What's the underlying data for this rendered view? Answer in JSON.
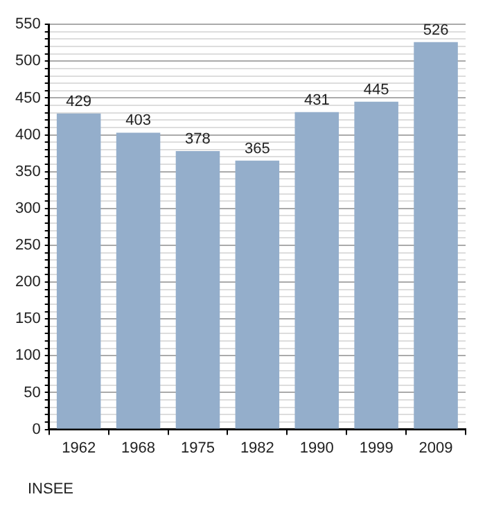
{
  "chart_data": {
    "type": "bar",
    "categories": [
      "1962",
      "1968",
      "1975",
      "1982",
      "1990",
      "1999",
      "2009"
    ],
    "values": [
      429,
      403,
      378,
      365,
      431,
      445,
      526
    ],
    "color": "#94aecb",
    "ylim": [
      0,
      550
    ],
    "yticks": [
      0,
      {
        "value": 10,
        "label": null
      },
      {
        "value": 20,
        "label": null
      },
      {
        "value": 30,
        "label": null
      },
      {
        "value": 40,
        "label": null
      },
      50,
      {
        "value": 60,
        "label": null
      },
      {
        "value": 70,
        "label": null
      },
      {
        "value": 80,
        "label": null
      },
      {
        "value": 90,
        "label": null
      },
      100,
      {
        "value": 110,
        "label": null
      },
      {
        "value": 120,
        "label": null
      },
      {
        "value": 130,
        "label": null
      },
      {
        "value": 140,
        "label": null
      },
      150,
      {
        "value": 160,
        "label": null
      },
      {
        "value": 170,
        "label": null
      },
      {
        "value": 180,
        "label": null
      },
      {
        "value": 190,
        "label": null
      },
      200,
      {
        "value": 210,
        "label": null
      },
      {
        "value": 220,
        "label": null
      },
      {
        "value": 230,
        "label": null
      },
      {
        "value": 240,
        "label": null
      },
      250,
      {
        "value": 260,
        "label": null
      },
      {
        "value": 270,
        "label": null
      },
      {
        "value": 280,
        "label": null
      },
      {
        "value": 290,
        "label": null
      },
      300,
      {
        "value": 310,
        "label": null
      },
      {
        "value": 320,
        "label": null
      },
      {
        "value": 330,
        "label": null
      },
      {
        "value": 340,
        "label": null
      },
      350,
      {
        "value": 360,
        "label": null
      },
      {
        "value": 370,
        "label": null
      },
      {
        "value": 380,
        "label": null
      },
      {
        "value": 390,
        "label": null
      },
      400,
      {
        "value": 410,
        "label": null
      },
      {
        "value": 420,
        "label": null
      },
      {
        "value": 430,
        "label": null
      },
      {
        "value": 440,
        "label": null
      },
      450,
      {
        "value": 460,
        "label": null
      },
      {
        "value": 470,
        "label": null
      },
      {
        "value": 480,
        "label": null
      },
      {
        "value": 490,
        "label": null
      },
      500,
      {
        "value": 510,
        "label": null
      },
      {
        "value": 520,
        "label": null
      },
      {
        "value": 530,
        "label": null
      },
      {
        "value": 540,
        "label": null
      },
      550
    ],
    "grid": true,
    "data_labels": true,
    "legend": false,
    "annotations": [
      "INSEE"
    ]
  }
}
